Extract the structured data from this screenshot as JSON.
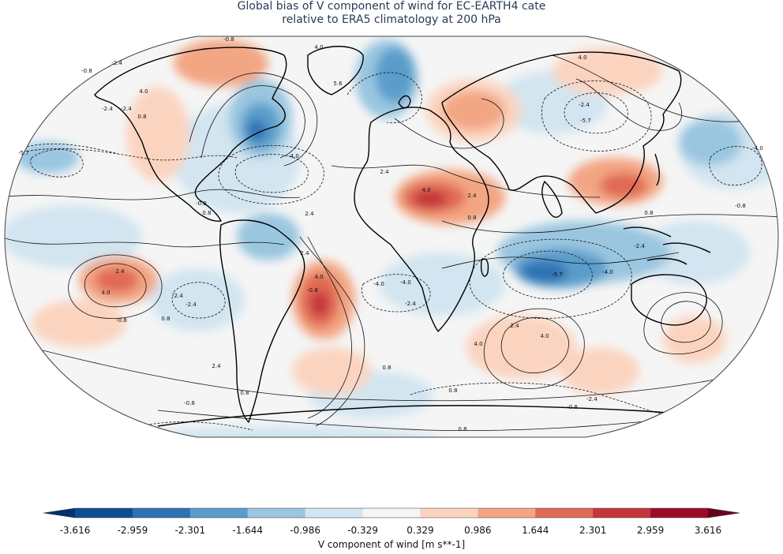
{
  "title": {
    "line1": "Global bias of V component of wind for EC-EARTH4 cate",
    "line2": "relative to ERA5 climatology at 200 hPa"
  },
  "projection": "Robinson",
  "colorbar": {
    "label": "V component of wind [m s**-1]",
    "ticks": [
      "-3.616",
      "-2.959",
      "-2.301",
      "-1.644",
      "-0.986",
      "-0.329",
      "0.329",
      "0.986",
      "1.644",
      "2.301",
      "2.959",
      "3.616"
    ],
    "colors": [
      "#0b4f93",
      "#2d72b4",
      "#5a9dcb",
      "#9ac6e0",
      "#d2e5f0",
      "#f5f5f5",
      "#fbd4bf",
      "#f3a683",
      "#e06b55",
      "#c4363a",
      "#9c0b26"
    ],
    "under_color": "#08306b",
    "over_color": "#67001f"
  },
  "contour_labels": [
    "-0.8",
    "0.8",
    "-2.4",
    "2.4",
    "4.0",
    "-4.0",
    "5.6",
    "-5.7",
    "0.8"
  ],
  "map_labels": [
    {
      "text": "-0.8"
    },
    {
      "text": "-2.4"
    },
    {
      "text": "-0.8"
    },
    {
      "text": "4.0"
    },
    {
      "text": "5.6"
    },
    {
      "text": "-2.4"
    },
    {
      "text": "0.8"
    },
    {
      "text": "4.0"
    },
    {
      "text": "-2.4"
    },
    {
      "text": "-5.7"
    },
    {
      "text": "-4.0"
    },
    {
      "text": "2.4"
    },
    {
      "text": "4.0"
    },
    {
      "text": "0.8"
    },
    {
      "text": "2.4"
    },
    {
      "text": "-0.8"
    },
    {
      "text": "0.8"
    },
    {
      "text": "2.4"
    },
    {
      "text": "4.0"
    },
    {
      "text": "-0.8"
    },
    {
      "text": "-4.0"
    },
    {
      "text": "2.4"
    },
    {
      "text": "4.0"
    },
    {
      "text": "-4.0"
    },
    {
      "text": "-2.4"
    },
    {
      "text": "-5.7"
    },
    {
      "text": "-4.0"
    },
    {
      "text": "0.8"
    },
    {
      "text": "-2.4"
    },
    {
      "text": "2.4"
    },
    {
      "text": "4.0"
    },
    {
      "text": "-0.8"
    },
    {
      "text": "0.8"
    },
    {
      "text": "-2.4"
    },
    {
      "text": "2.4"
    },
    {
      "text": "4.0"
    },
    {
      "text": "-0.8"
    },
    {
      "text": "0.8"
    },
    {
      "text": "0.8"
    },
    {
      "text": "-2.4"
    },
    {
      "text": "0.8"
    },
    {
      "text": "-0.8"
    },
    {
      "text": "-2.4"
    },
    {
      "text": "-5.7"
    },
    {
      "text": "4.0"
    },
    {
      "text": "-2.4"
    },
    {
      "text": "-4.0"
    },
    {
      "text": "2.4"
    },
    {
      "text": "-0.8"
    },
    {
      "text": "0.8"
    }
  ]
}
